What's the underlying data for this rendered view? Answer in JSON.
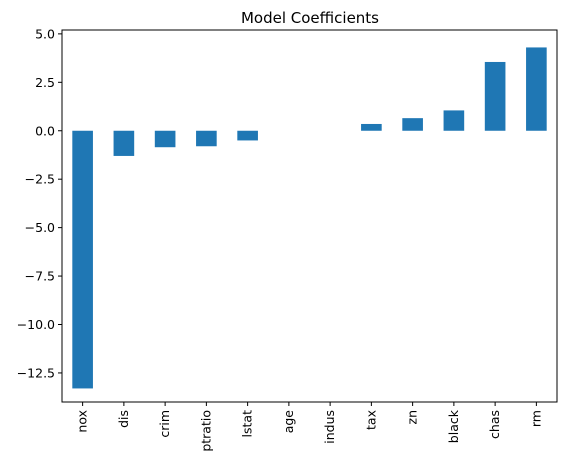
{
  "chart_data": {
    "type": "bar",
    "title": "Model Coefficients",
    "xlabel": "",
    "ylabel": "",
    "categories": [
      "nox",
      "dis",
      "crim",
      "ptratio",
      "lstat",
      "age",
      "indus",
      "tax",
      "zn",
      "black",
      "chas",
      "rm"
    ],
    "values": [
      -13.3,
      -1.3,
      -0.85,
      -0.8,
      -0.5,
      0.0,
      0.0,
      0.35,
      0.65,
      1.05,
      3.55,
      4.3
    ],
    "ylim": [
      -14.0,
      5.2
    ],
    "yticks": [
      5.0,
      2.5,
      0.0,
      -2.5,
      -5.0,
      -7.5,
      -10.0,
      -12.5
    ],
    "ytick_labels": [
      "5.0",
      "2.5",
      "0.0",
      "−2.5",
      "−5.0",
      "−7.5",
      "−10.0",
      "−12.5"
    ],
    "grid": false,
    "bar_color": "#1f77b4"
  }
}
